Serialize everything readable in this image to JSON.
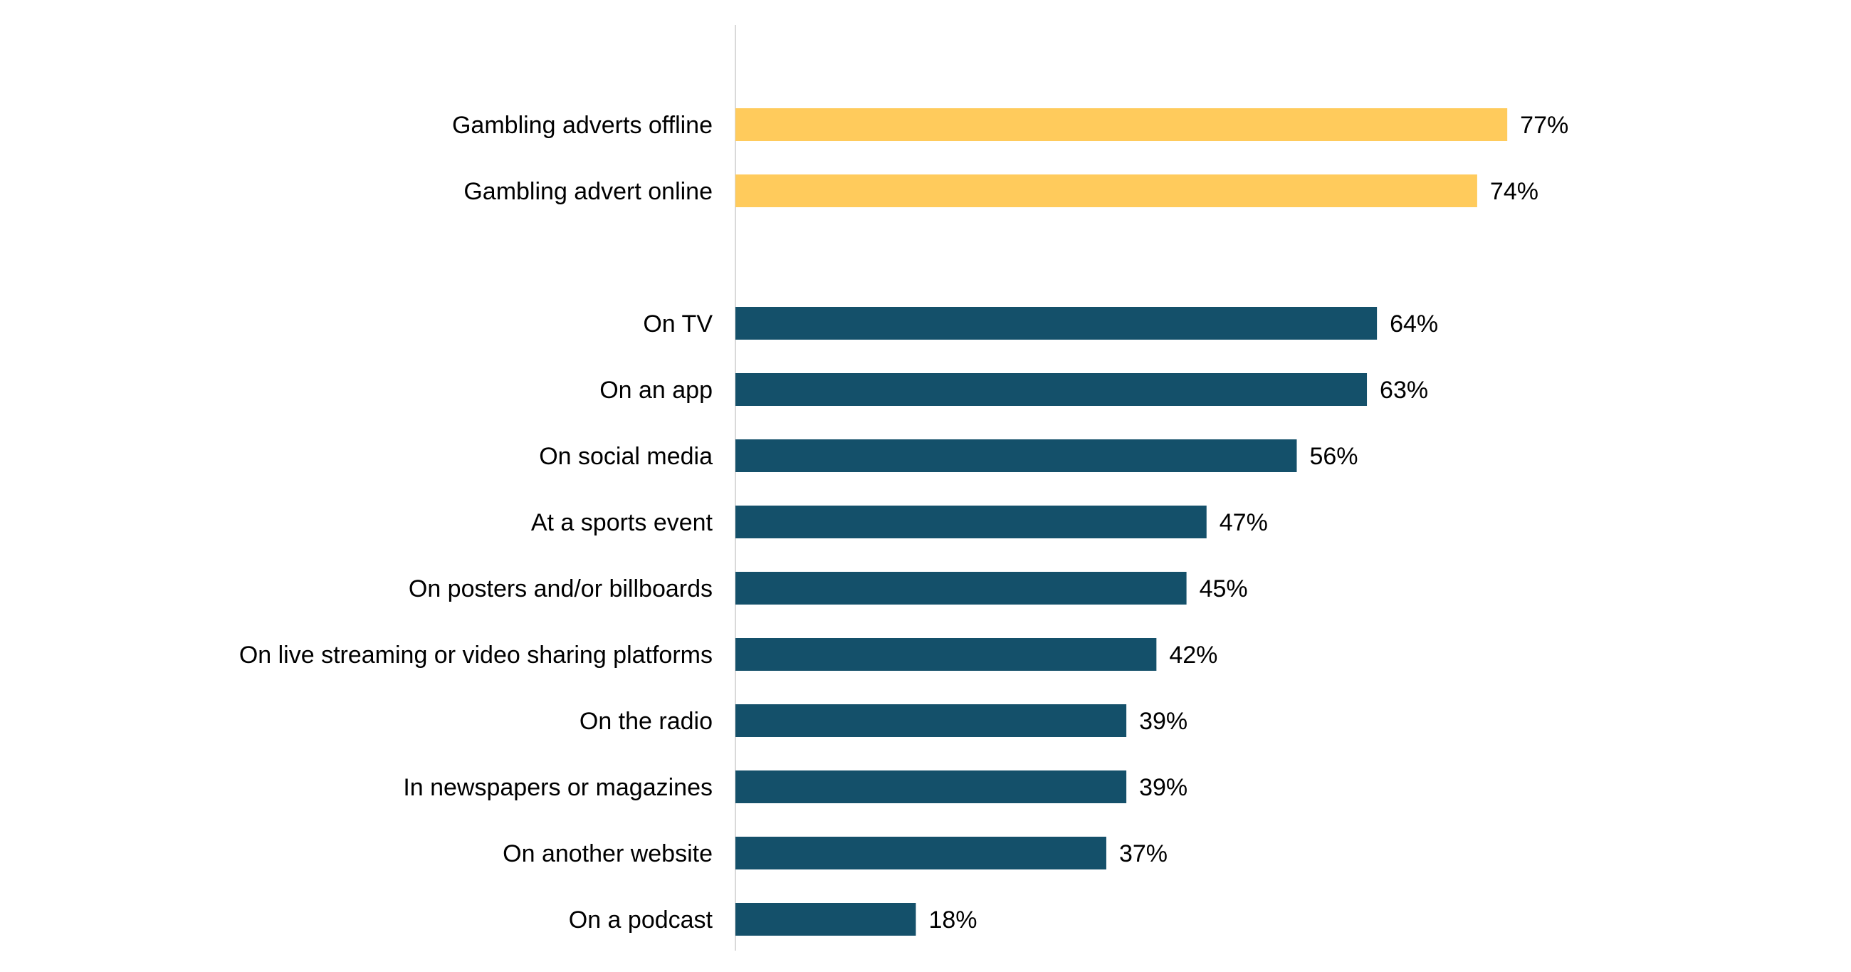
{
  "chart_data": {
    "type": "bar",
    "orientation": "horizontal",
    "title": "",
    "xlabel": "",
    "ylabel": "",
    "xlim": [
      0,
      100
    ],
    "grid": false,
    "legend": "none",
    "value_suffix": "%",
    "colors": {
      "highlight": "#FFCB5C",
      "base": "#14506A",
      "axis": "#D9D9D9"
    },
    "groups": [
      {
        "color_key": "highlight",
        "bars": [
          {
            "category": "Gambling adverts offline",
            "value": 77,
            "label": "77%"
          },
          {
            "category": "Gambling advert online",
            "value": 74,
            "label": "74%"
          }
        ]
      },
      {
        "color_key": "base",
        "bars": [
          {
            "category": "On TV",
            "value": 64,
            "label": "64%"
          },
          {
            "category": "On an app",
            "value": 63,
            "label": "63%"
          },
          {
            "category": "On social media",
            "value": 56,
            "label": "56%"
          },
          {
            "category": "At a sports event",
            "value": 47,
            "label": "47%"
          },
          {
            "category": "On posters and/or billboards",
            "value": 45,
            "label": "45%"
          },
          {
            "category": "On live streaming or video sharing platforms",
            "value": 42,
            "label": "42%"
          },
          {
            "category": "On the radio",
            "value": 39,
            "label": "39%"
          },
          {
            "category": "In newspapers or magazines",
            "value": 39,
            "label": "39%"
          },
          {
            "category": "On another website",
            "value": 37,
            "label": "37%"
          },
          {
            "category": "On a podcast",
            "value": 18,
            "label": "18%"
          }
        ]
      }
    ]
  }
}
